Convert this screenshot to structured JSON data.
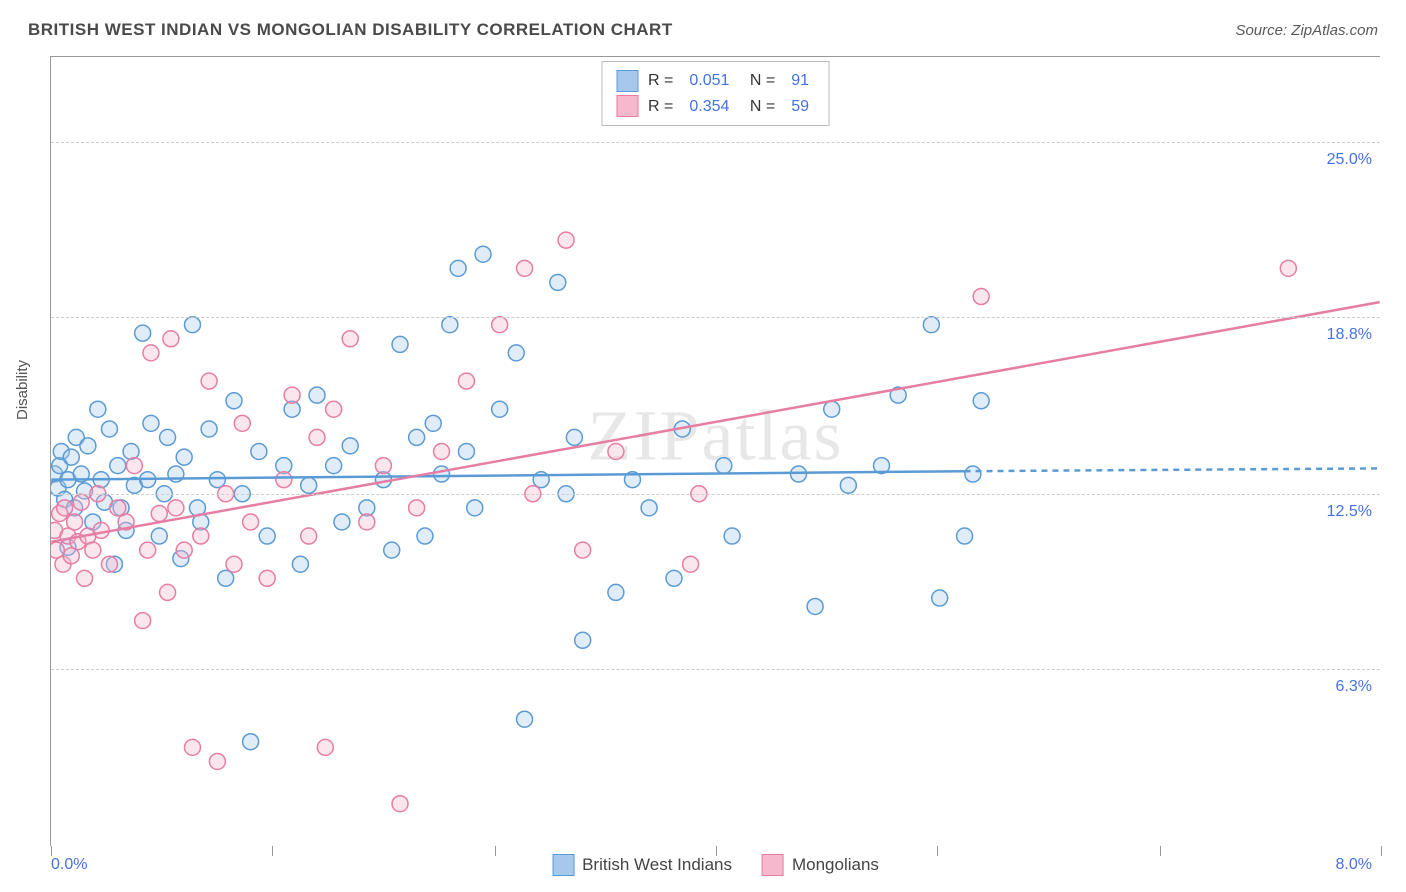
{
  "title": "BRITISH WEST INDIAN VS MONGOLIAN DISABILITY CORRELATION CHART",
  "source": "Source: ZipAtlas.com",
  "watermark": "ZIPatlas",
  "ylabel": "Disability",
  "chart": {
    "type": "scatter",
    "xlim": [
      0,
      8
    ],
    "ylim": [
      0,
      28
    ],
    "x_label_min": "0.0%",
    "x_label_max": "8.0%",
    "y_tick_values": [
      6.3,
      12.5,
      18.8,
      25.0
    ],
    "y_tick_labels": [
      "6.3%",
      "12.5%",
      "18.8%",
      "25.0%"
    ],
    "x_tick_positions": [
      0,
      1.33,
      2.67,
      4.0,
      5.33,
      6.67,
      8.0
    ],
    "background_color": "#ffffff",
    "grid_color": "#cccccc",
    "marker_radius": 8,
    "marker_stroke_width": 1.5,
    "marker_fill_opacity": 0.35,
    "trend_line_width": 2.5,
    "series": [
      {
        "name": "British West Indians",
        "color_stroke": "#5b9bd5",
        "color_fill": "#a6c8ec",
        "R": "0.051",
        "N": "91",
        "trend": {
          "x1": 0,
          "y1": 13.0,
          "x2": 5.5,
          "y2": 13.3,
          "x2_dash": 8.0,
          "y2_dash": 13.4
        },
        "points": [
          [
            0.02,
            13.2
          ],
          [
            0.04,
            12.7
          ],
          [
            0.05,
            13.5
          ],
          [
            0.06,
            14.0
          ],
          [
            0.08,
            12.3
          ],
          [
            0.1,
            13.0
          ],
          [
            0.1,
            10.6
          ],
          [
            0.12,
            13.8
          ],
          [
            0.14,
            12.0
          ],
          [
            0.15,
            14.5
          ],
          [
            0.18,
            13.2
          ],
          [
            0.2,
            12.6
          ],
          [
            0.22,
            14.2
          ],
          [
            0.25,
            11.5
          ],
          [
            0.28,
            15.5
          ],
          [
            0.3,
            13.0
          ],
          [
            0.32,
            12.2
          ],
          [
            0.35,
            14.8
          ],
          [
            0.38,
            10.0
          ],
          [
            0.4,
            13.5
          ],
          [
            0.42,
            12.0
          ],
          [
            0.45,
            11.2
          ],
          [
            0.48,
            14.0
          ],
          [
            0.5,
            12.8
          ],
          [
            0.55,
            18.2
          ],
          [
            0.58,
            13.0
          ],
          [
            0.6,
            15.0
          ],
          [
            0.65,
            11.0
          ],
          [
            0.68,
            12.5
          ],
          [
            0.7,
            14.5
          ],
          [
            0.75,
            13.2
          ],
          [
            0.78,
            10.2
          ],
          [
            0.8,
            13.8
          ],
          [
            0.85,
            18.5
          ],
          [
            0.88,
            12.0
          ],
          [
            0.9,
            11.5
          ],
          [
            0.95,
            14.8
          ],
          [
            1.0,
            13.0
          ],
          [
            1.05,
            9.5
          ],
          [
            1.1,
            15.8
          ],
          [
            1.15,
            12.5
          ],
          [
            1.2,
            3.7
          ],
          [
            1.25,
            14.0
          ],
          [
            1.3,
            11.0
          ],
          [
            1.4,
            13.5
          ],
          [
            1.45,
            15.5
          ],
          [
            1.5,
            10.0
          ],
          [
            1.55,
            12.8
          ],
          [
            1.6,
            16.0
          ],
          [
            1.7,
            13.5
          ],
          [
            1.75,
            11.5
          ],
          [
            1.8,
            14.2
          ],
          [
            1.9,
            12.0
          ],
          [
            2.0,
            13.0
          ],
          [
            2.05,
            10.5
          ],
          [
            2.1,
            17.8
          ],
          [
            2.2,
            14.5
          ],
          [
            2.25,
            11.0
          ],
          [
            2.3,
            15.0
          ],
          [
            2.35,
            13.2
          ],
          [
            2.4,
            18.5
          ],
          [
            2.45,
            20.5
          ],
          [
            2.5,
            14.0
          ],
          [
            2.55,
            12.0
          ],
          [
            2.6,
            21.0
          ],
          [
            2.7,
            15.5
          ],
          [
            2.8,
            17.5
          ],
          [
            2.85,
            4.5
          ],
          [
            2.95,
            13.0
          ],
          [
            3.05,
            20.0
          ],
          [
            3.1,
            12.5
          ],
          [
            3.15,
            14.5
          ],
          [
            3.2,
            7.3
          ],
          [
            3.4,
            9.0
          ],
          [
            3.5,
            13.0
          ],
          [
            3.6,
            12.0
          ],
          [
            3.75,
            9.5
          ],
          [
            3.8,
            14.8
          ],
          [
            4.05,
            13.5
          ],
          [
            4.1,
            11.0
          ],
          [
            4.5,
            13.2
          ],
          [
            4.6,
            8.5
          ],
          [
            4.7,
            15.5
          ],
          [
            4.8,
            12.8
          ],
          [
            5.0,
            13.5
          ],
          [
            5.1,
            16.0
          ],
          [
            5.3,
            18.5
          ],
          [
            5.35,
            8.8
          ],
          [
            5.5,
            11.0
          ],
          [
            5.55,
            13.2
          ],
          [
            5.6,
            15.8
          ]
        ]
      },
      {
        "name": "Mongolians",
        "color_stroke": "#e67da3",
        "color_fill": "#f5b8cd",
        "R": "0.354",
        "N": "59",
        "trend": {
          "x1": 0,
          "y1": 10.8,
          "x2": 8.0,
          "y2": 19.3
        },
        "points": [
          [
            0.02,
            11.2
          ],
          [
            0.03,
            10.5
          ],
          [
            0.05,
            11.8
          ],
          [
            0.07,
            10.0
          ],
          [
            0.08,
            12.0
          ],
          [
            0.1,
            11.0
          ],
          [
            0.12,
            10.3
          ],
          [
            0.14,
            11.5
          ],
          [
            0.16,
            10.8
          ],
          [
            0.18,
            12.2
          ],
          [
            0.2,
            9.5
          ],
          [
            0.22,
            11.0
          ],
          [
            0.25,
            10.5
          ],
          [
            0.28,
            12.5
          ],
          [
            0.3,
            11.2
          ],
          [
            0.35,
            10.0
          ],
          [
            0.4,
            12.0
          ],
          [
            0.45,
            11.5
          ],
          [
            0.5,
            13.5
          ],
          [
            0.55,
            8.0
          ],
          [
            0.58,
            10.5
          ],
          [
            0.6,
            17.5
          ],
          [
            0.65,
            11.8
          ],
          [
            0.7,
            9.0
          ],
          [
            0.72,
            18.0
          ],
          [
            0.75,
            12.0
          ],
          [
            0.8,
            10.5
          ],
          [
            0.85,
            3.5
          ],
          [
            0.9,
            11.0
          ],
          [
            0.95,
            16.5
          ],
          [
            1.0,
            3.0
          ],
          [
            1.05,
            12.5
          ],
          [
            1.1,
            10.0
          ],
          [
            1.15,
            15.0
          ],
          [
            1.2,
            11.5
          ],
          [
            1.3,
            9.5
          ],
          [
            1.4,
            13.0
          ],
          [
            1.45,
            16.0
          ],
          [
            1.55,
            11.0
          ],
          [
            1.6,
            14.5
          ],
          [
            1.65,
            3.5
          ],
          [
            1.7,
            15.5
          ],
          [
            1.8,
            18.0
          ],
          [
            1.9,
            11.5
          ],
          [
            2.0,
            13.5
          ],
          [
            2.1,
            1.5
          ],
          [
            2.2,
            12.0
          ],
          [
            2.35,
            14.0
          ],
          [
            2.5,
            16.5
          ],
          [
            2.7,
            18.5
          ],
          [
            2.85,
            20.5
          ],
          [
            2.9,
            12.5
          ],
          [
            3.1,
            21.5
          ],
          [
            3.2,
            10.5
          ],
          [
            3.4,
            14.0
          ],
          [
            3.85,
            10.0
          ],
          [
            3.9,
            12.5
          ],
          [
            5.6,
            19.5
          ],
          [
            7.45,
            20.5
          ]
        ]
      }
    ]
  },
  "legend_bottom": [
    {
      "label": "British West Indians",
      "sw_fill": "#a6c8ec",
      "sw_border": "#5b9bd5"
    },
    {
      "label": "Mongolians",
      "sw_fill": "#f5b8cd",
      "sw_border": "#e67da3"
    }
  ],
  "colors": {
    "title": "#4a4a4a",
    "axis_value": "#4472e4"
  }
}
